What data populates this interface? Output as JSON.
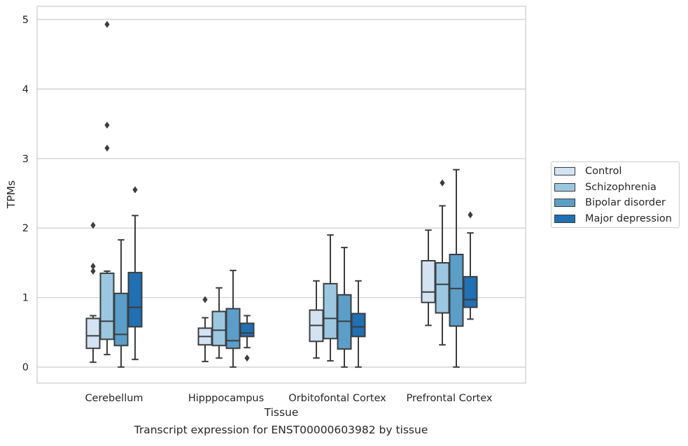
{
  "chart_data": {
    "type": "box",
    "xlabel": "Tissue",
    "ylabel": "TPMs",
    "caption": "Transcript expression for ENST00000603982 by tissue",
    "ylim": [
      -0.23,
      5.19
    ],
    "yticks": [
      0,
      1,
      2,
      3,
      4,
      5
    ],
    "grid": "horizontal",
    "legend_position": "right",
    "categories": [
      "Cerebellum",
      "Hipppocampus",
      "Orbitofontal Cortex",
      "Prefrontal Cortex"
    ],
    "series": [
      {
        "name": "Control",
        "color": "#d2e3f3",
        "boxes": [
          {
            "whislo": 0.07,
            "q1": 0.27,
            "med": 0.45,
            "q3": 0.7,
            "whishi": 0.74,
            "fliers": [
              1.38,
              1.45,
              2.04
            ]
          },
          {
            "whislo": 0.08,
            "q1": 0.32,
            "med": 0.44,
            "q3": 0.56,
            "whishi": 0.71,
            "fliers": [
              0.97
            ]
          },
          {
            "whislo": 0.13,
            "q1": 0.37,
            "med": 0.6,
            "q3": 0.82,
            "whishi": 1.24,
            "fliers": []
          },
          {
            "whislo": 0.6,
            "q1": 0.93,
            "med": 1.08,
            "q3": 1.53,
            "whishi": 1.97,
            "fliers": []
          }
        ]
      },
      {
        "name": "Schizophrenia",
        "color": "#9ac8e0",
        "boxes": [
          {
            "whislo": 0.18,
            "q1": 0.4,
            "med": 0.66,
            "q3": 1.35,
            "whishi": 1.38,
            "fliers": [
              3.15,
              3.48,
              4.93
            ]
          },
          {
            "whislo": 0.13,
            "q1": 0.31,
            "med": 0.53,
            "q3": 0.8,
            "whishi": 1.14,
            "fliers": []
          },
          {
            "whislo": 0.09,
            "q1": 0.41,
            "med": 0.7,
            "q3": 1.2,
            "whishi": 1.9,
            "fliers": []
          },
          {
            "whislo": 0.32,
            "q1": 0.78,
            "med": 1.19,
            "q3": 1.5,
            "whishi": 2.32,
            "fliers": [
              2.65
            ]
          }
        ]
      },
      {
        "name": "Bipolar disorder",
        "color": "#5a9ec9",
        "boxes": [
          {
            "whislo": 0.0,
            "q1": 0.31,
            "med": 0.47,
            "q3": 1.06,
            "whishi": 1.83,
            "fliers": []
          },
          {
            "whislo": 0.0,
            "q1": 0.27,
            "med": 0.38,
            "q3": 0.84,
            "whishi": 1.39,
            "fliers": []
          },
          {
            "whislo": 0.0,
            "q1": 0.26,
            "med": 0.66,
            "q3": 1.04,
            "whishi": 1.72,
            "fliers": []
          },
          {
            "whislo": 0.0,
            "q1": 0.59,
            "med": 1.13,
            "q3": 1.62,
            "whishi": 2.84,
            "fliers": []
          }
        ]
      },
      {
        "name": "Major depression",
        "color": "#2070b4",
        "boxes": [
          {
            "whislo": 0.11,
            "q1": 0.58,
            "med": 0.86,
            "q3": 1.36,
            "whishi": 2.18,
            "fliers": [
              2.55
            ]
          },
          {
            "whislo": 0.28,
            "q1": 0.44,
            "med": 0.49,
            "q3": 0.63,
            "whishi": 0.74,
            "fliers": [
              0.13
            ]
          },
          {
            "whislo": 0.0,
            "q1": 0.44,
            "med": 0.58,
            "q3": 0.77,
            "whishi": 1.24,
            "fliers": []
          },
          {
            "whislo": 0.69,
            "q1": 0.86,
            "med": 0.97,
            "q3": 1.3,
            "whishi": 1.93,
            "fliers": [
              2.19
            ]
          }
        ]
      }
    ]
  }
}
